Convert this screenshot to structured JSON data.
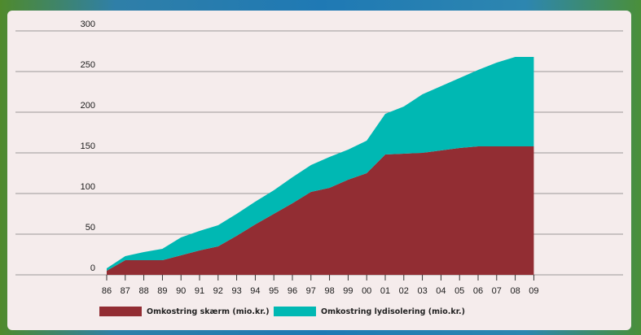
{
  "chart_data": {
    "type": "area",
    "stacked": true,
    "x": [
      "86",
      "87",
      "88",
      "89",
      "90",
      "91",
      "92",
      "93",
      "94",
      "95",
      "96",
      "97",
      "98",
      "99",
      "00",
      "01",
      "02",
      "03",
      "04",
      "05",
      "06",
      "07",
      "08",
      "09"
    ],
    "ylim": [
      0,
      300
    ],
    "yticks": [
      0,
      50,
      100,
      150,
      200,
      250,
      300
    ],
    "grid": true,
    "legend_position": "bottom",
    "series": [
      {
        "name": "Omkostring skærm (mio.kr.)",
        "color": "#922d33",
        "values": [
          5,
          18,
          18,
          18,
          24,
          30,
          35,
          48,
          62,
          75,
          88,
          102,
          107,
          117,
          125,
          148,
          149,
          150,
          153,
          156,
          158,
          158,
          158,
          158
        ]
      },
      {
        "name": "Omkostring lydisolering (mio.kr.)",
        "color": "#00b8b3",
        "values": [
          3,
          5,
          10,
          14,
          22,
          24,
          26,
          27,
          28,
          29,
          32,
          33,
          38,
          37,
          40,
          50,
          58,
          72,
          79,
          86,
          94,
          103,
          110,
          110
        ]
      }
    ]
  }
}
